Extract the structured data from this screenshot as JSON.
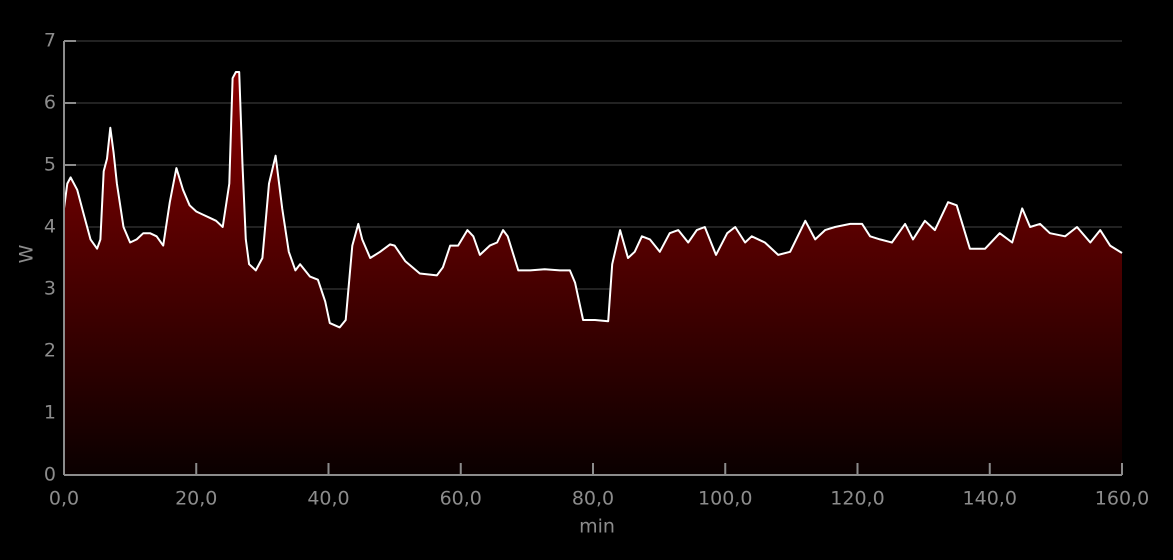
{
  "chart_data": {
    "type": "area",
    "xlabel": "min",
    "ylabel": "W",
    "x": [
      0,
      0.5,
      1,
      2,
      3,
      4,
      5,
      5.5,
      6,
      6.5,
      7,
      7.5,
      8,
      9,
      10,
      11,
      12,
      13,
      14,
      15,
      16,
      17,
      18,
      19,
      20,
      21,
      22,
      23,
      24,
      25,
      25.5,
      26,
      26.5,
      27,
      27.5,
      28,
      29,
      30,
      31,
      32,
      33,
      34,
      35,
      35.7,
      37.2,
      38.4,
      39.5,
      40.2,
      41.7,
      42.6,
      43.6,
      44.5,
      45.1,
      46.3,
      47.8,
      49.3,
      50,
      51.6,
      53.8,
      56.4,
      57.3,
      58.4,
      59.6,
      61,
      61.9,
      62.9,
      64.4,
      65.5,
      66.4,
      67.1,
      68.7,
      70.5,
      72.7,
      75,
      76.5,
      77.3,
      78.5,
      80.3,
      82.3,
      82.9,
      84.1,
      85.3,
      86.3,
      87.4,
      88.6,
      90.1,
      91.6,
      92.9,
      94.4,
      95.7,
      96.9,
      98.6,
      100.3,
      101.5,
      103,
      104,
      106,
      108,
      109.8,
      112.1,
      113.6,
      115.1,
      116.6,
      118.9,
      120.7,
      121.9,
      123.4,
      125.2,
      127.2,
      128.4,
      130.2,
      131.7,
      133.7,
      135,
      137,
      139.3,
      141.5,
      143.4,
      144.9,
      146.1,
      147.6,
      149.1,
      151.4,
      153.2,
      155.2,
      156.7,
      158.2,
      160
    ],
    "values": [
      4.3,
      4.7,
      4.8,
      4.6,
      4.2,
      3.8,
      3.65,
      3.8,
      4.9,
      5.1,
      5.6,
      5.2,
      4.7,
      4.0,
      3.75,
      3.8,
      3.9,
      3.9,
      3.85,
      3.7,
      4.4,
      4.95,
      4.6,
      4.35,
      4.25,
      4.2,
      4.15,
      4.1,
      4.0,
      4.7,
      6.4,
      6.5,
      6.5,
      5.0,
      3.8,
      3.4,
      3.3,
      3.5,
      4.7,
      5.15,
      4.3,
      3.6,
      3.3,
      3.4,
      3.2,
      3.15,
      2.8,
      2.45,
      2.38,
      2.5,
      3.7,
      4.05,
      3.8,
      3.5,
      3.6,
      3.72,
      3.7,
      3.45,
      3.25,
      3.22,
      3.35,
      3.7,
      3.7,
      3.95,
      3.85,
      3.55,
      3.7,
      3.75,
      3.95,
      3.85,
      3.3,
      3.3,
      3.32,
      3.3,
      3.3,
      3.1,
      2.5,
      2.5,
      2.48,
      3.4,
      3.95,
      3.5,
      3.6,
      3.85,
      3.8,
      3.6,
      3.9,
      3.95,
      3.75,
      3.95,
      4.0,
      3.55,
      3.9,
      4.0,
      3.75,
      3.85,
      3.75,
      3.55,
      3.6,
      4.1,
      3.8,
      3.95,
      4.0,
      4.05,
      4.05,
      3.85,
      3.8,
      3.75,
      4.05,
      3.8,
      4.1,
      3.95,
      4.4,
      4.35,
      3.65,
      3.65,
      3.9,
      3.75,
      4.3,
      4.0,
      4.05,
      3.9,
      3.85,
      4.0,
      3.75,
      3.95,
      3.7,
      3.58
    ],
    "color": "#ffffff",
    "fill_top": "#8a0000",
    "fill_bottom": "#0a0000",
    "xlim": [
      0,
      160
    ],
    "xticks": [
      {
        "value": 0,
        "label": "0,0"
      },
      {
        "value": 20,
        "label": "20,0"
      },
      {
        "value": 40,
        "label": "40,0"
      },
      {
        "value": 60,
        "label": "60,0"
      },
      {
        "value": 80,
        "label": "80,0"
      },
      {
        "value": 100,
        "label": "100,0"
      },
      {
        "value": 120,
        "label": "120,0"
      },
      {
        "value": 140,
        "label": "140,0"
      },
      {
        "value": 160,
        "label": "160,0"
      }
    ],
    "ylim": [
      0,
      7
    ],
    "yticks": [
      0,
      1,
      2,
      3,
      4,
      5,
      6,
      7
    ],
    "grid": true
  }
}
